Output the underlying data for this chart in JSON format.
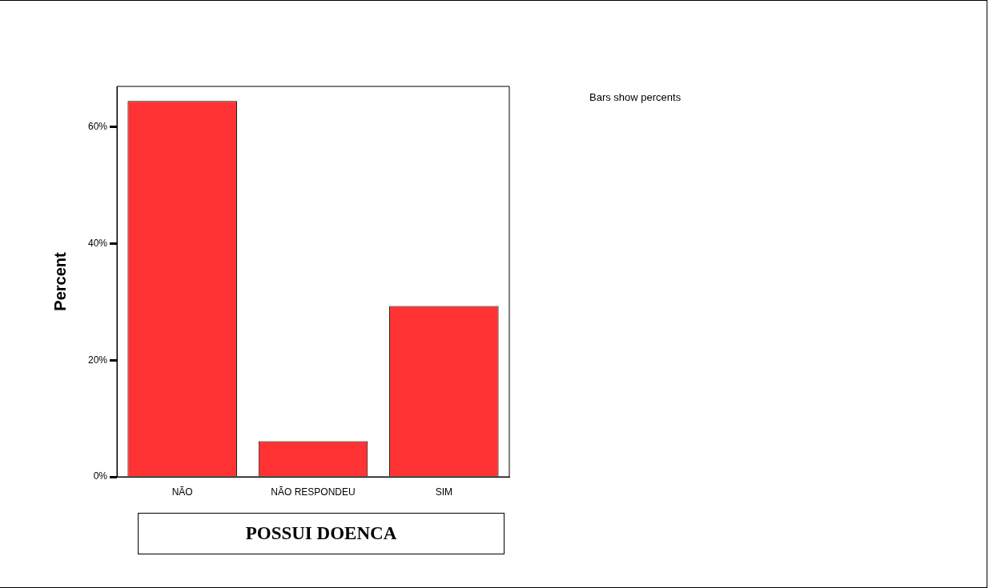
{
  "chart_data": {
    "type": "bar",
    "xlabel": "POSSUI DOENCA",
    "ylabel": "Percent",
    "categories": [
      "NÃO",
      "NÃO RESPONDEU",
      "SIM"
    ],
    "values": [
      64.5,
      6.1,
      29.3
    ],
    "color": "#ff3333",
    "ylim": [
      0,
      67
    ],
    "yticks": [
      {
        "value": 0,
        "label": "0%"
      },
      {
        "value": 20,
        "label": "20%"
      },
      {
        "value": 40,
        "label": "40%"
      },
      {
        "value": 60,
        "label": "60%"
      }
    ],
    "annotations": [
      "Bars show percents"
    ]
  }
}
